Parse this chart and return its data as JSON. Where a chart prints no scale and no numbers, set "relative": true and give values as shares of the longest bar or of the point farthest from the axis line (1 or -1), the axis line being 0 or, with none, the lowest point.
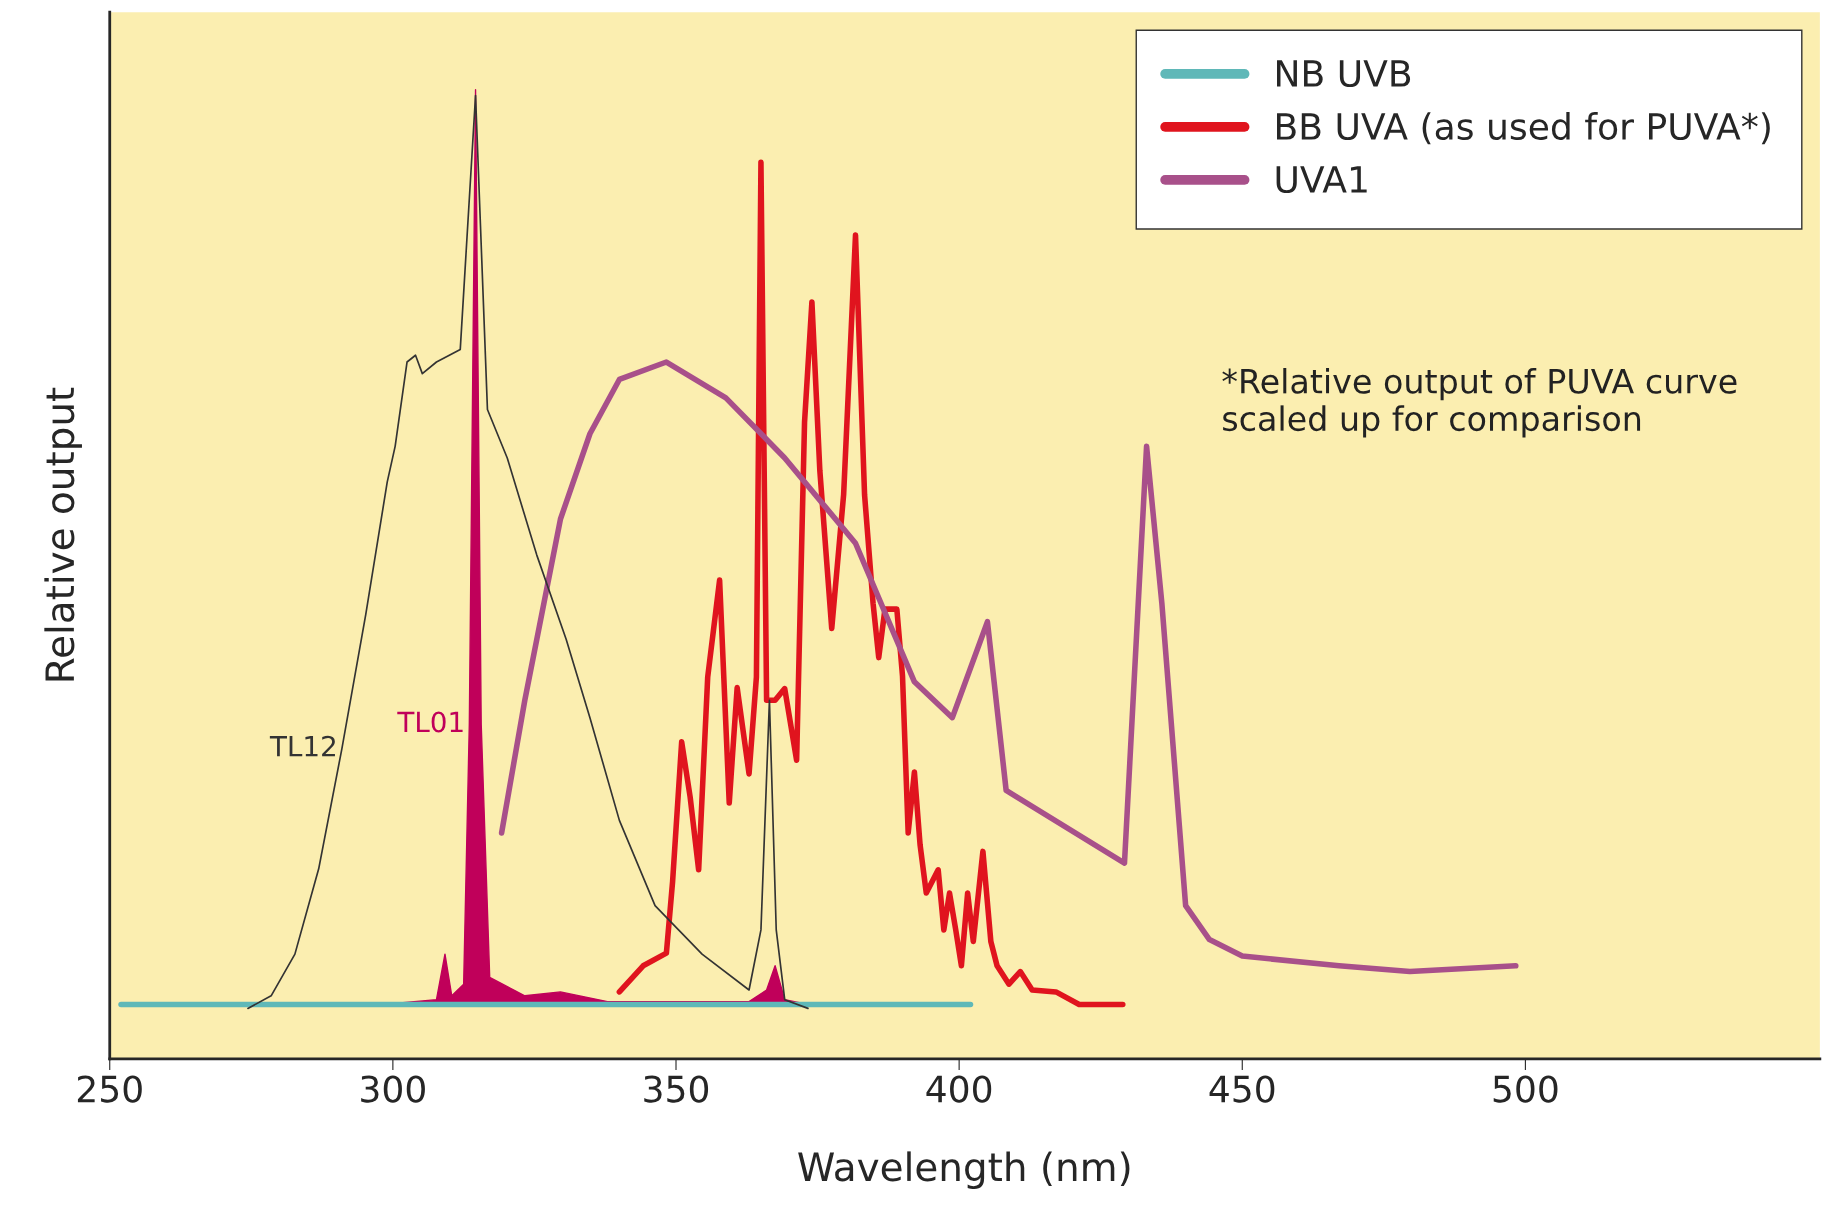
{
  "chart_data": {
    "type": "line",
    "relative": true,
    "xlabel": "Wavelength (nm)",
    "ylabel": "Relative output",
    "xlim": [
      250,
      552
    ],
    "xticks": [
      250,
      300,
      350,
      400,
      450,
      500
    ],
    "grid": false,
    "legend": "top right",
    "annotations": [
      "*Relative output of PUVA curve scaled up for comparison"
    ],
    "series": [
      {
        "name": "NB UVB",
        "color": "#5fb8b8",
        "x": [
          252,
          402
        ],
        "values": [
          0.056,
          0.056
        ]
      },
      {
        "name": "BB UVA (as used for PUVA*)",
        "color": "#e0141e",
        "x": [
          340.0,
          344.2,
          348.3,
          349.4,
          351.0,
          352.5,
          354.0,
          355.6,
          357.7,
          359.4,
          360.8,
          362.9,
          364.2,
          365.0,
          366.0,
          367.5,
          369.2,
          371.3,
          372.7,
          374.0,
          375.4,
          377.5,
          379.6,
          381.7,
          383.3,
          384.8,
          385.8,
          386.9,
          389.0,
          390.0,
          391.0,
          392.1,
          393.1,
          394.2,
          396.3,
          397.3,
          398.3,
          399.4,
          400.4,
          401.5,
          402.5,
          404.2,
          405.6,
          406.7,
          408.8,
          410.8,
          412.9,
          417.1,
          421.2,
          428.9
        ],
        "values": [
          0.069,
          0.096,
          0.109,
          0.183,
          0.327,
          0.27,
          0.195,
          0.394,
          0.494,
          0.264,
          0.383,
          0.294,
          0.394,
          0.925,
          0.37,
          0.37,
          0.382,
          0.308,
          0.657,
          0.781,
          0.607,
          0.444,
          0.582,
          0.85,
          0.582,
          0.47,
          0.414,
          0.464,
          0.464,
          0.395,
          0.233,
          0.296,
          0.221,
          0.171,
          0.195,
          0.133,
          0.171,
          0.133,
          0.096,
          0.171,
          0.121,
          0.214,
          0.121,
          0.096,
          0.077,
          0.09,
          0.071,
          0.069,
          0.056,
          0.056
        ]
      },
      {
        "name": "UVA1",
        "color": "#a8508a",
        "x": [
          319.2,
          323.3,
          329.6,
          334.8,
          340.0,
          348.3,
          358.8,
          369.2,
          381.7,
          392.1,
          398.8,
          405.0,
          408.3,
          429.2,
          433.1,
          435.8,
          440.0,
          444.2,
          450.0,
          467.1,
          479.6,
          498.3
        ],
        "values": [
          0.233,
          0.37,
          0.557,
          0.645,
          0.701,
          0.719,
          0.682,
          0.62,
          0.532,
          0.389,
          0.352,
          0.451,
          0.277,
          0.202,
          0.632,
          0.47,
          0.158,
          0.123,
          0.106,
          0.096,
          0.09,
          0.096
        ]
      },
      {
        "name": "TL12",
        "color": "#333333",
        "x": [
          274.4,
          278.5,
          282.7,
          286.9,
          291.0,
          295.2,
          299.0,
          300.4,
          302.5,
          304.0,
          305.2,
          307.7,
          311.9,
          314.6,
          316.7,
          320.2,
          325.4,
          330.6,
          334.8,
          340.0,
          346.3,
          354.6,
          362.9,
          365.0,
          366.5,
          367.7,
          369.2,
          373.3
        ],
        "values": [
          0.052,
          0.065,
          0.108,
          0.196,
          0.32,
          0.458,
          0.595,
          0.632,
          0.719,
          0.726,
          0.707,
          0.719,
          0.732,
          0.994,
          0.67,
          0.62,
          0.52,
          0.433,
          0.352,
          0.246,
          0.158,
          0.108,
          0.071,
          0.133,
          0.37,
          0.133,
          0.061,
          0.052
        ]
      },
      {
        "name": "TL01",
        "type": "area",
        "color": "#c0005a",
        "x": [
          298.3,
          307.7,
          309.2,
          310.4,
          312.5,
          313.5,
          314.6,
          315.6,
          317.1,
          323.3,
          329.6,
          337.9,
          362.9,
          366.0,
          367.5,
          369.2,
          373.3
        ],
        "values": [
          0.056,
          0.061,
          0.108,
          0.065,
          0.077,
          0.345,
          1.0,
          0.345,
          0.084,
          0.065,
          0.069,
          0.059,
          0.059,
          0.071,
          0.096,
          0.061,
          0.056
        ]
      }
    ]
  }
}
